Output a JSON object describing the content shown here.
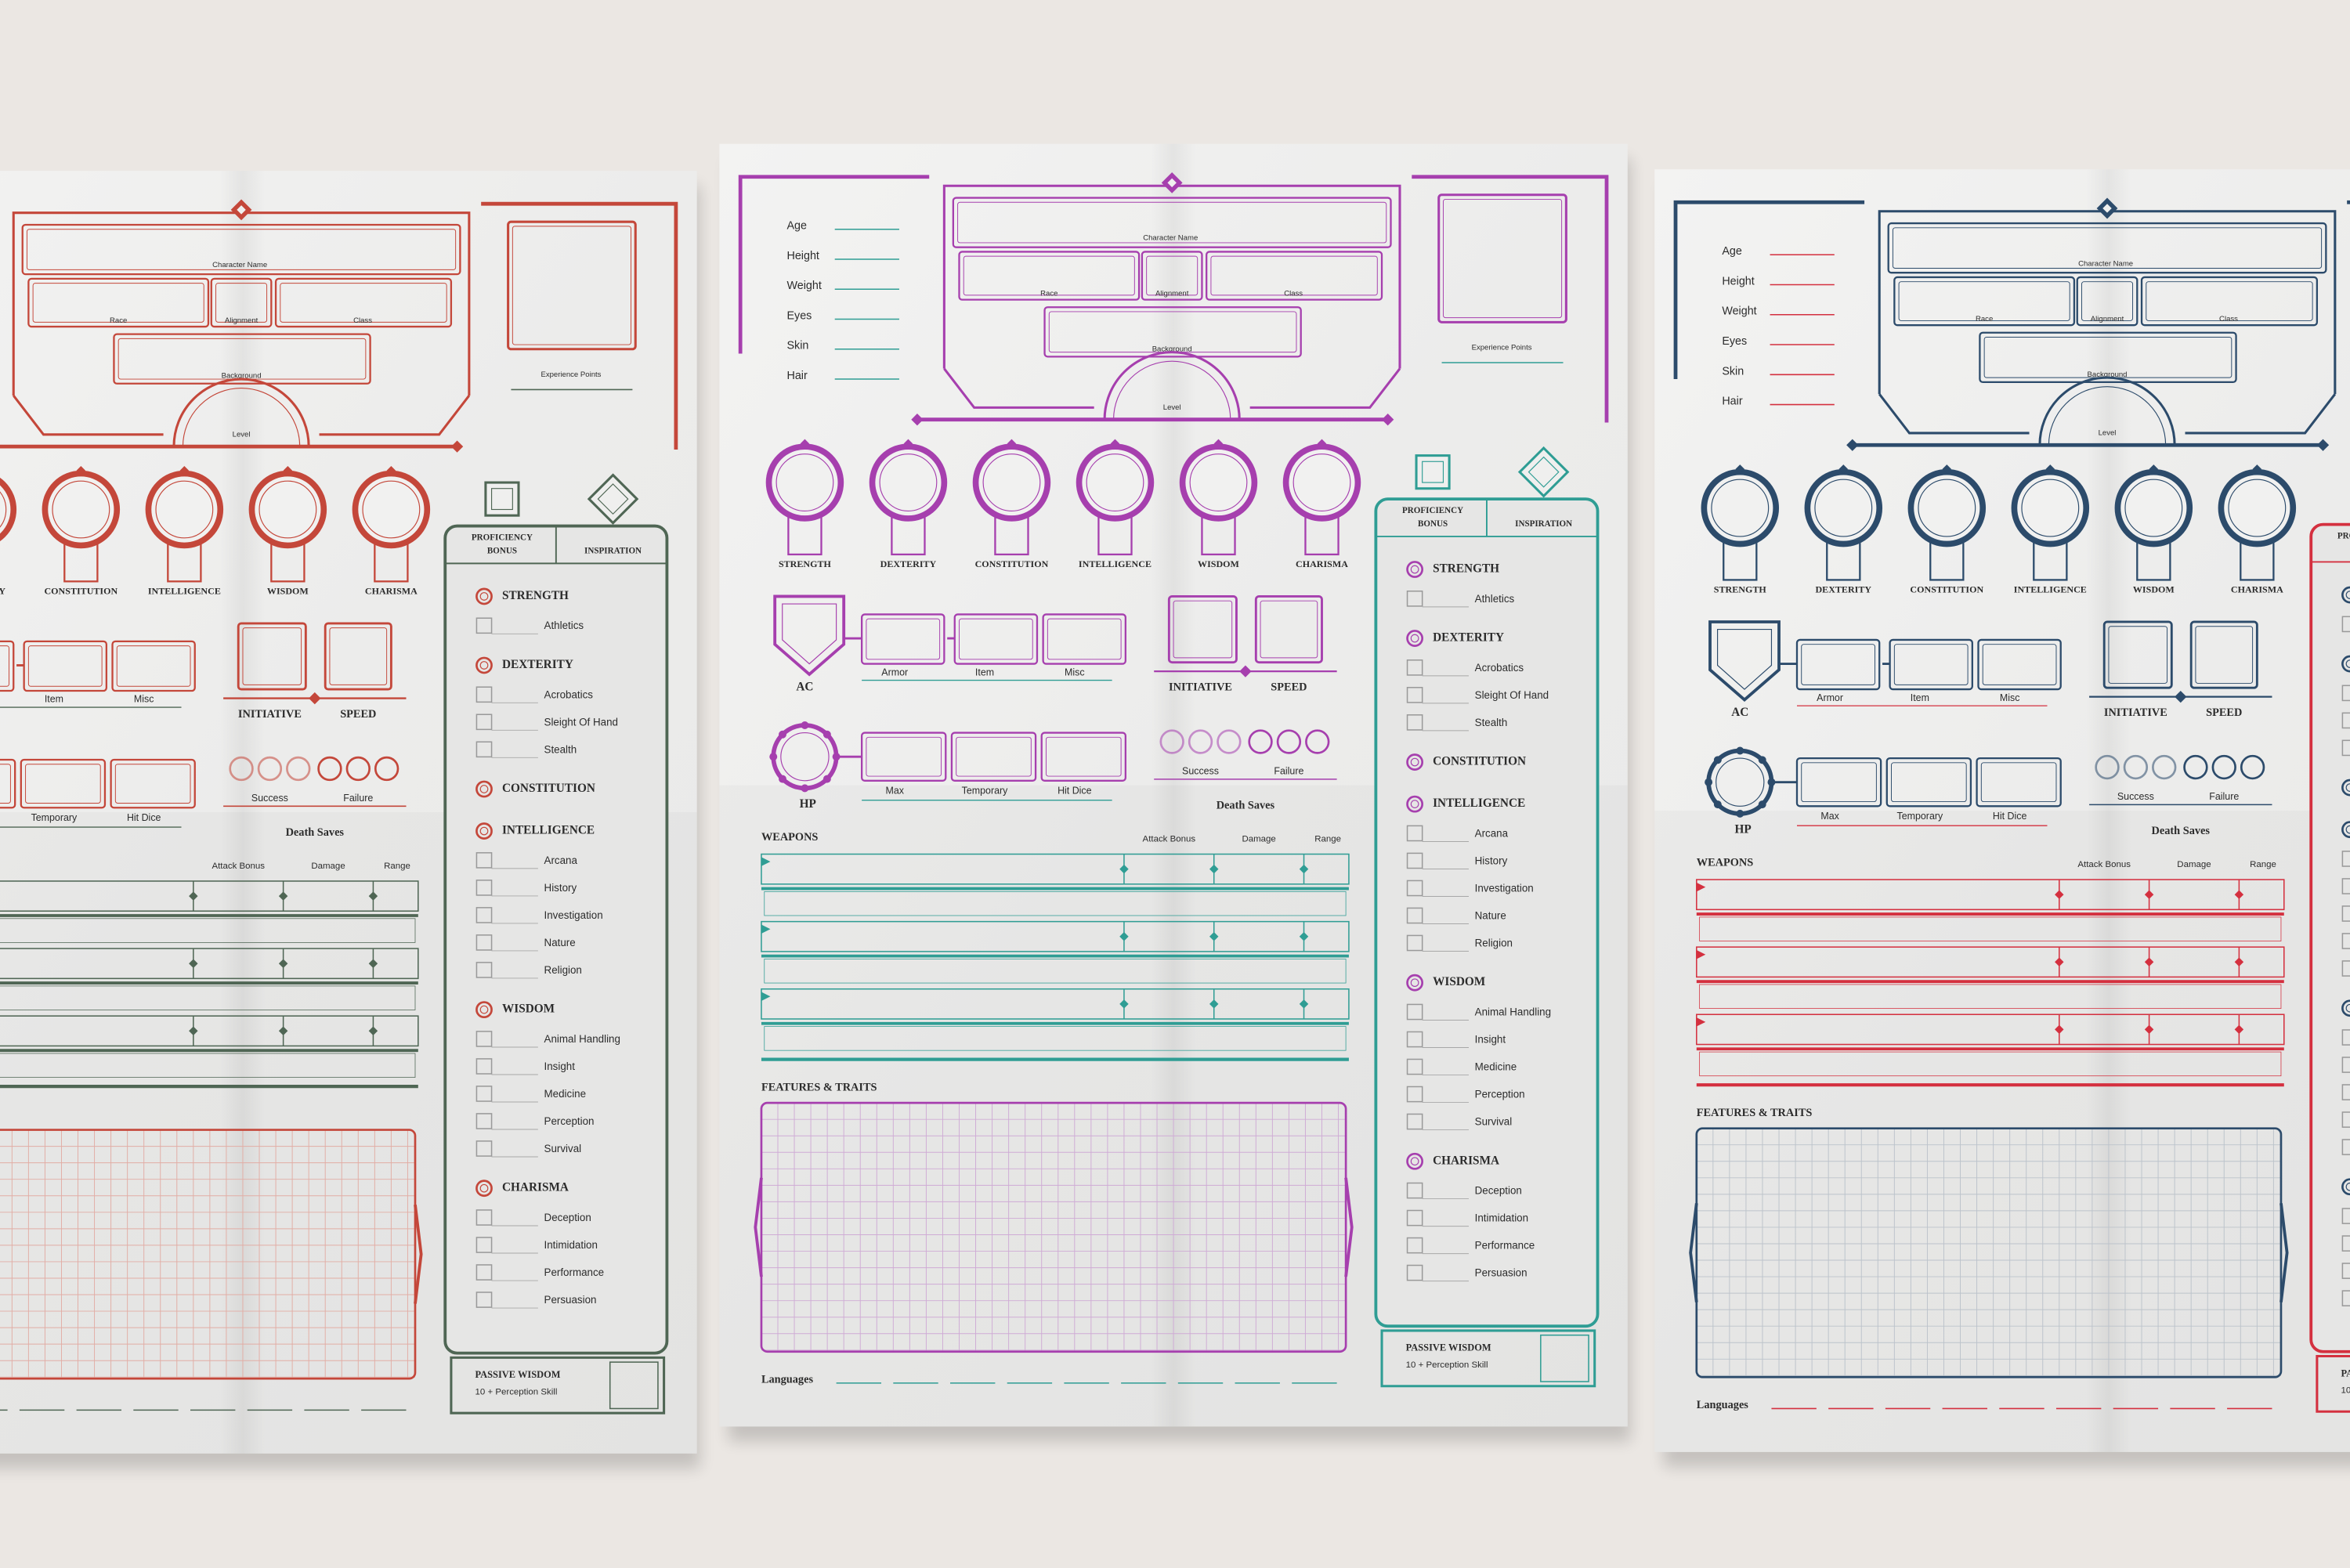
{
  "sheets": [
    {
      "primary": "#c4473a",
      "accent": "#4f6654",
      "grid": "#e2ada5"
    },
    {
      "primary": "#a63fae",
      "accent": "#2f9d94",
      "grid": "#cfabd5"
    },
    {
      "primary": "#2c4b6b",
      "accent": "#d4303f",
      "grid": "#bcc3cb"
    }
  ],
  "labels": {
    "personal": [
      "Age",
      "Height",
      "Weight",
      "Eyes",
      "Skin",
      "Hair"
    ],
    "character_name": "Character Name",
    "race": "Race",
    "alignment": "Alignment",
    "class": "Class",
    "background": "Background",
    "level": "Level",
    "experience_points": "Experience Points",
    "abilities": [
      "STRENGTH",
      "DEXTERITY",
      "CONSTITUTION",
      "INTELLIGENCE",
      "WISDOM",
      "CHARISMA"
    ],
    "ac": "AC",
    "armor": "Armor",
    "item": "Item",
    "misc": "Misc",
    "initiative": "INITIATIVE",
    "speed": "SPEED",
    "hp": "HP",
    "max": "Max",
    "temporary": "Temporary",
    "hit_dice": "Hit Dice",
    "success": "Success",
    "failure": "Failure",
    "death_saves": "Death Saves",
    "weapons": "WEAPONS",
    "attack_bonus": "Attack Bonus",
    "damage": "Damage",
    "range": "Range",
    "features": "FEATURES & TRAITS",
    "languages": "Languages",
    "proficiency_bonus": [
      "PROFICIENCY",
      "BONUS"
    ],
    "inspiration": "INSPIRATION",
    "skills": [
      [
        "Athletics"
      ],
      [
        "Acrobatics",
        "Sleight Of Hand",
        "Stealth"
      ],
      [],
      [
        "Arcana",
        "History",
        "Investigation",
        "Nature",
        "Religion"
      ],
      [
        "Animal Handling",
        "Insight",
        "Medicine",
        "Perception",
        "Survival"
      ],
      [
        "Deception",
        "Intimidation",
        "Performance",
        "Persuasion"
      ]
    ],
    "passive_wisdom": "PASSIVE WISDOM",
    "passive_note": "10 + Perception Skill"
  }
}
